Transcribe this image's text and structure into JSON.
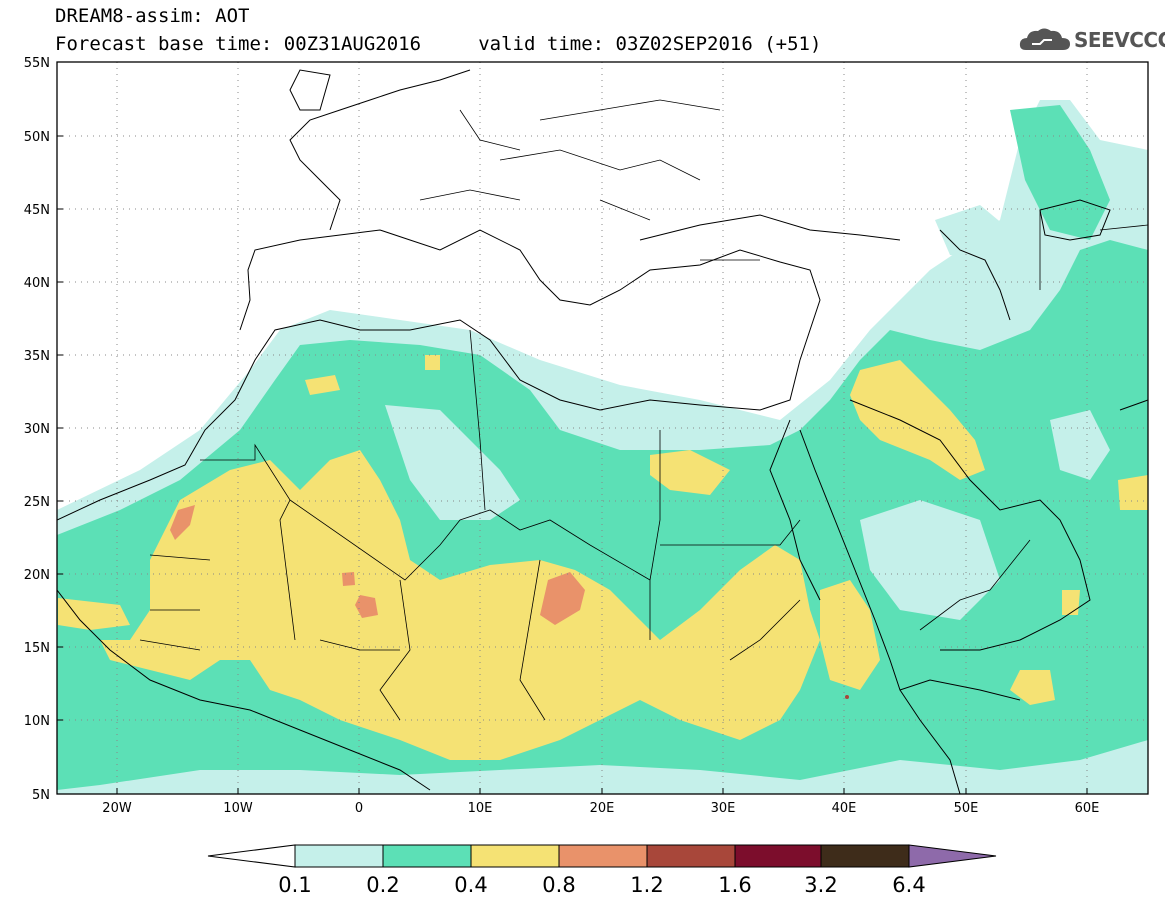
{
  "header": {
    "line1": "DREAM8-assim: AOT",
    "line2": "Forecast base time: 00Z31AUG2016     valid time: 03Z02SEP2016 (+51)"
  },
  "logo": {
    "text": "SEEVCCC",
    "icon": "cloud-icon"
  },
  "map": {
    "lat_labels": [
      "55N",
      "50N",
      "45N",
      "40N",
      "35N",
      "30N",
      "25N",
      "20N",
      "15N",
      "10N",
      "5N"
    ],
    "lon_labels": [
      "20W",
      "10W",
      "0",
      "10E",
      "20E",
      "30E",
      "40E",
      "50E",
      "60E"
    ],
    "lat_range": [
      5,
      55
    ],
    "lon_range": [
      -25,
      65
    ],
    "grid": true
  },
  "colorbar": {
    "levels": [
      "0.1",
      "0.2",
      "0.4",
      "0.8",
      "1.2",
      "1.6",
      "3.2",
      "6.4"
    ],
    "colors": [
      "#ffffff",
      "#c5f0ea",
      "#5ce0b6",
      "#f5e274",
      "#e9926a",
      "#a8473a",
      "#7c0d2c",
      "#3e2c1a",
      "#8e6aaa"
    ]
  }
}
